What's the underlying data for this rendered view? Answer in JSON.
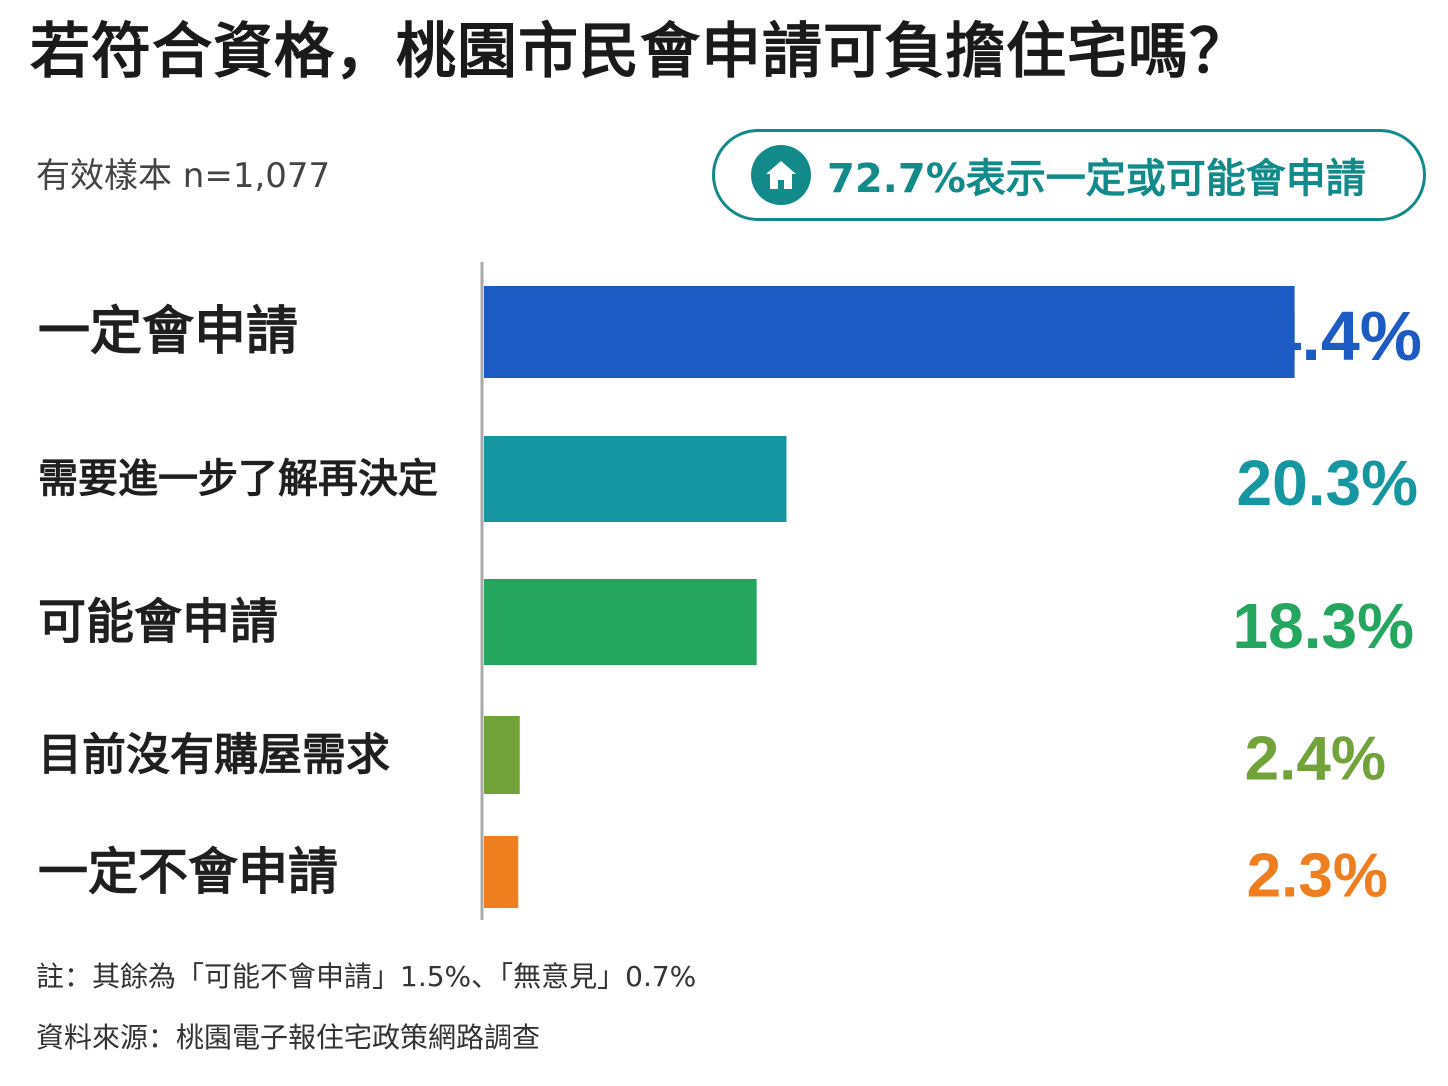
{
  "header": {
    "title": "若符合資格，桃園市民會申請可負擔住宅嗎？",
    "sample": "有效樣本 n=1,077",
    "highlight_icon": "house-icon",
    "highlight_text": "72.7%表示一定或可能會申請"
  },
  "chart_data": {
    "type": "bar",
    "orientation": "horizontal",
    "title": "若符合資格，桃園市民會申請可負擔住宅嗎？",
    "categories": [
      "一定會申請",
      "需要進一步了解再決定",
      "可能會申請",
      "目前沒有購屋需求",
      "一定不會申請"
    ],
    "values": [
      54.4,
      20.3,
      18.3,
      2.4,
      2.3
    ],
    "value_labels": [
      "54.4%",
      "20.3%",
      "18.3%",
      "2.4%",
      "2.3%"
    ],
    "colors": [
      "#1c5bc4",
      "#1596a0",
      "#24a65e",
      "#72a23a",
      "#ef7e1e"
    ],
    "unit": "%",
    "xlim": [
      0,
      60
    ],
    "grid": false,
    "legend": "none"
  },
  "footer": {
    "note": "註：其餘為「可能不會申請」1.5%、「無意見」0.7%",
    "source": "資料來源：桃園電子報住宅政策網路調查"
  }
}
